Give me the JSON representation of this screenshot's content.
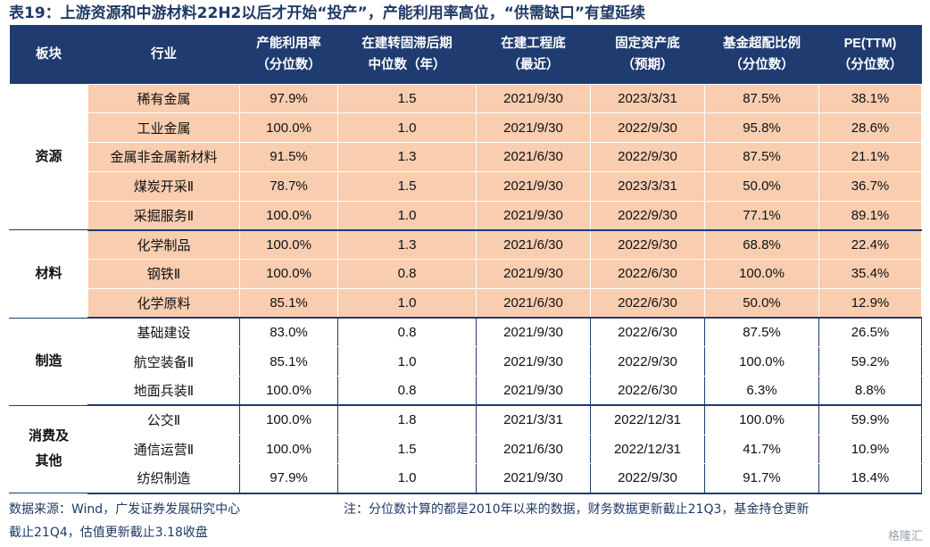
{
  "title": "表19：上游资源和中游材料22H2以后才开始“投产”，产能利用率高位，“供需缺口”有望延续",
  "headers": [
    {
      "l1": "板块",
      "l2": ""
    },
    {
      "l1": "行业",
      "l2": ""
    },
    {
      "l1": "产能利用率",
      "l2": "（分位数）"
    },
    {
      "l1": "在建转固滞后期",
      "l2": "中位数（年）"
    },
    {
      "l1": "在建工程底",
      "l2": "（最近）"
    },
    {
      "l1": "固定资产底",
      "l2": "（预期）"
    },
    {
      "l1": "基金超配比例",
      "l2": "（分位数）"
    },
    {
      "l1": "PE(TTM)",
      "l2": "（分位数）"
    }
  ],
  "groups": [
    {
      "sector": "资源",
      "highlight": true,
      "rows": [
        [
          "稀有金属",
          "97.9%",
          "1.5",
          "2021/9/30",
          "2023/3/31",
          "87.5%",
          "38.1%"
        ],
        [
          "工业金属",
          "100.0%",
          "1.0",
          "2021/9/30",
          "2022/9/30",
          "95.8%",
          "28.6%"
        ],
        [
          "金属非金属新材料",
          "91.5%",
          "1.3",
          "2021/6/30",
          "2022/9/30",
          "87.5%",
          "21.1%"
        ],
        [
          "煤炭开采Ⅱ",
          "78.7%",
          "1.5",
          "2021/9/30",
          "2023/3/31",
          "50.0%",
          "36.7%"
        ],
        [
          "采掘服务Ⅱ",
          "100.0%",
          "1.0",
          "2021/9/30",
          "2022/9/30",
          "77.1%",
          "89.1%"
        ]
      ]
    },
    {
      "sector": "材料",
      "highlight": true,
      "rows": [
        [
          "化学制品",
          "100.0%",
          "1.3",
          "2021/6/30",
          "2022/9/30",
          "68.8%",
          "22.4%"
        ],
        [
          "钢铁Ⅱ",
          "100.0%",
          "0.8",
          "2021/9/30",
          "2022/6/30",
          "100.0%",
          "35.4%"
        ],
        [
          "化学原料",
          "85.1%",
          "1.0",
          "2021/6/30",
          "2022/6/30",
          "50.0%",
          "12.9%"
        ]
      ]
    },
    {
      "sector": "制造",
      "highlight": false,
      "rows": [
        [
          "基础建设",
          "83.0%",
          "0.8",
          "2021/9/30",
          "2022/6/30",
          "87.5%",
          "26.5%"
        ],
        [
          "航空装备Ⅱ",
          "85.1%",
          "1.0",
          "2021/9/30",
          "2022/9/30",
          "100.0%",
          "59.2%"
        ],
        [
          "地面兵装Ⅱ",
          "100.0%",
          "0.8",
          "2021/9/30",
          "2022/6/30",
          "6.3%",
          "8.8%"
        ]
      ]
    },
    {
      "sector": "消费及其他",
      "highlight": false,
      "rows": [
        [
          "公交Ⅱ",
          "100.0%",
          "1.8",
          "2021/3/31",
          "2022/12/31",
          "100.0%",
          "59.9%"
        ],
        [
          "通信运营Ⅱ",
          "100.0%",
          "1.5",
          "2021/6/30",
          "2022/12/31",
          "41.7%",
          "10.9%"
        ],
        [
          "纺织制造",
          "97.9%",
          "1.0",
          "2021/9/30",
          "2022/9/30",
          "91.7%",
          "18.4%"
        ]
      ]
    }
  ],
  "footer": {
    "source": "数据来源：Wind，广发证券发展研究中心",
    "note": "注：分位数计算的都是2010年以来的数据，财务数据更新截止21Q3，基金持仓更新",
    "note2": "截止21Q4，估值更新截止3.18收盘"
  },
  "watermark": "格隆汇",
  "colors": {
    "header_bg": "#1f3b6f",
    "highlight_bg": "#f8cdb0",
    "title": "#1f3a66"
  }
}
